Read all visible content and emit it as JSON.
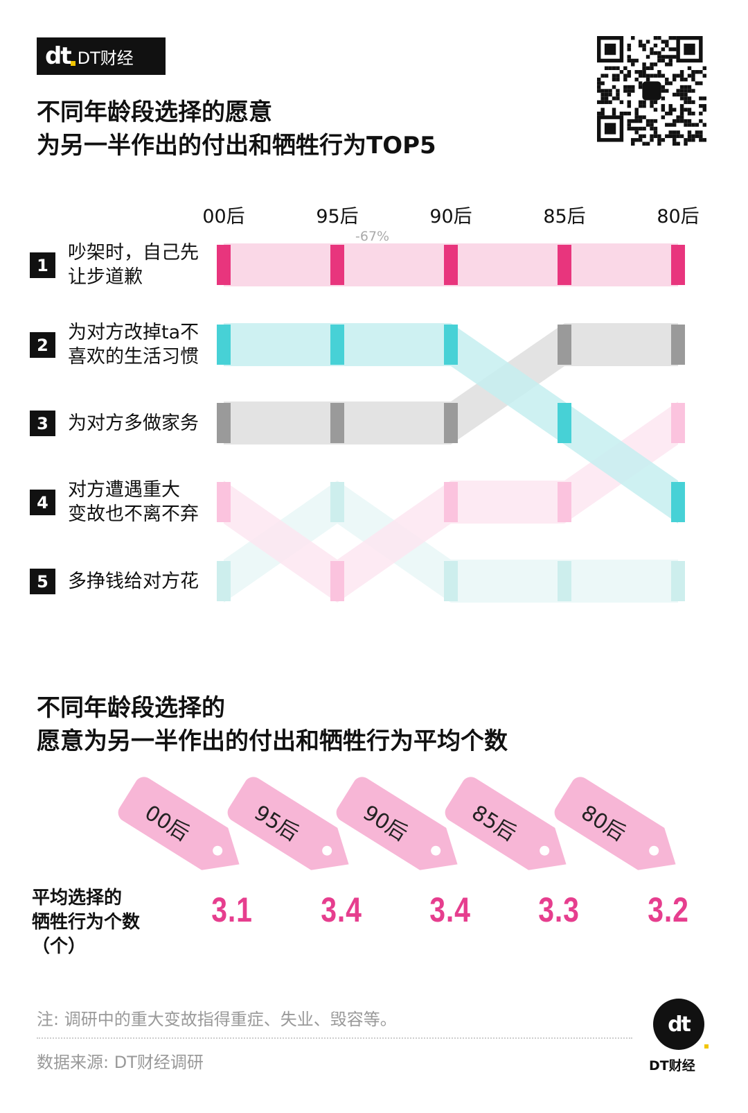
{
  "brand": {
    "logo_mark": "dt",
    "logo_text": "DT财经",
    "footer_text": "DT财经"
  },
  "titles": {
    "top_line1": "不同年龄段选择的愿意",
    "top_line2": "为另一半作出的付出和牺牲行为TOP5",
    "bottom_line1": "不同年龄段选择的",
    "bottom_line2": "愿意为另一半作出的付出和牺牲行为平均个数"
  },
  "chart_data": [
    {
      "type": "bump",
      "title": "不同年龄段选择的愿意为另一半作出的付出和牺牲行为TOP5",
      "categories": [
        "00后",
        "95后",
        "90后",
        "85后",
        "80后"
      ],
      "ranks": [
        "1",
        "2",
        "3",
        "4",
        "5"
      ],
      "rank_labels": [
        "吵架时，自己先让步道歉",
        "为对方改掉ta不喜欢的生活习惯",
        "为对方多做家务",
        "对方遭遇重大变故也不离不弃",
        "多挣钱给对方花"
      ],
      "series": [
        {
          "name": "吵架时，自己先让步道歉",
          "color": "#e8357d",
          "band": "#f9d1e3",
          "ranks": [
            1,
            1,
            1,
            1,
            1
          ]
        },
        {
          "name": "为对方改掉ta不喜欢的生活习惯",
          "color": "#47d1d6",
          "band": "#c6eef0",
          "ranks": [
            2,
            2,
            2,
            3,
            4
          ]
        },
        {
          "name": "为对方多做家务",
          "color": "#9a9a9a",
          "band": "#dedede",
          "ranks": [
            3,
            3,
            3,
            2,
            2
          ]
        },
        {
          "name": "对方遭遇重大变故也不离不弃",
          "color": "#fbc3de",
          "band": "#fde6f1",
          "ranks": [
            4,
            5,
            4,
            4,
            3
          ]
        },
        {
          "name": "多挣钱给对方花",
          "color": "#cdeeed",
          "band": "#e9f7f7",
          "ranks": [
            5,
            4,
            5,
            5,
            5
          ]
        }
      ],
      "annotation": "-67%"
    },
    {
      "type": "bar",
      "title": "不同年龄段选择的愿意为另一半作出的付出和牺牲行为平均个数",
      "categories": [
        "00后",
        "95后",
        "90后",
        "85后",
        "80后"
      ],
      "values": [
        3.1,
        3.4,
        3.4,
        3.3,
        3.2
      ],
      "value_labels": [
        "3.1",
        "3.4",
        "3.4",
        "3.3",
        "3.2"
      ],
      "row_label_lines": [
        "平均选择的",
        "牺牲行为个数",
        "（个）"
      ]
    }
  ],
  "footer": {
    "note": "注: 调研中的重大变故指得重症、失业、毁容等。",
    "source": "数据来源: DT财经调研"
  }
}
